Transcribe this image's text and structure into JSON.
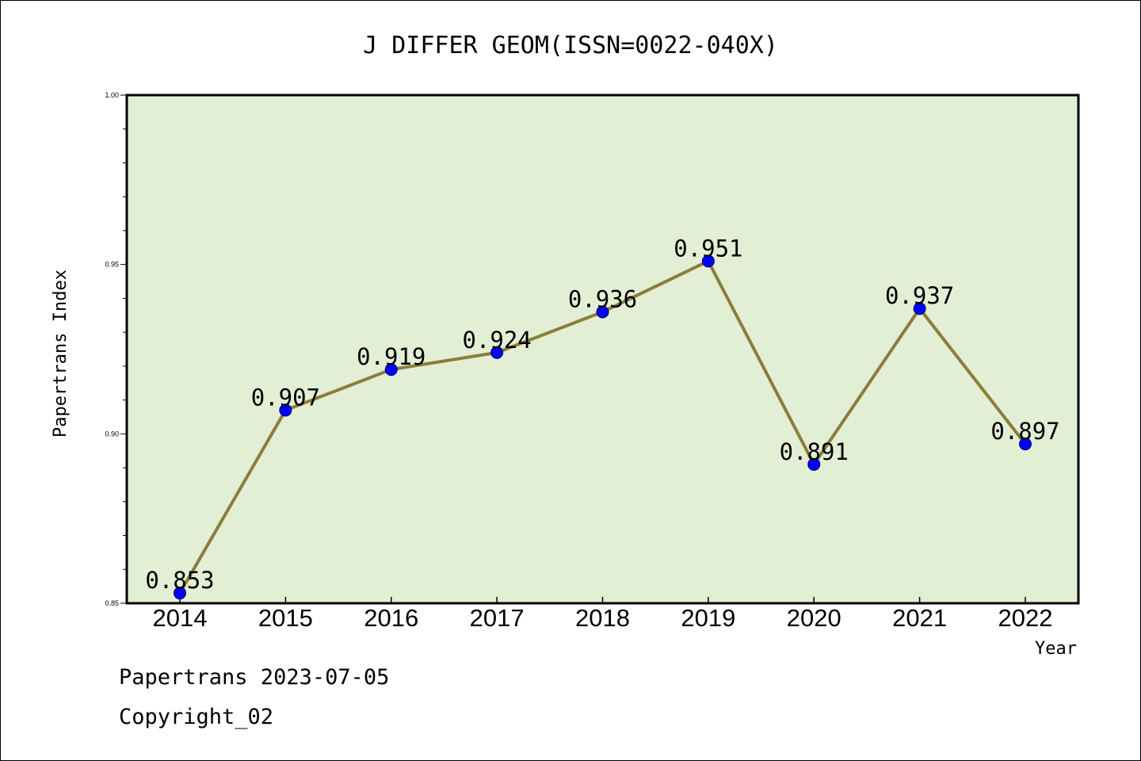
{
  "chart_data": {
    "type": "line",
    "title": "J DIFFER GEOM(ISSN=0022-040X)",
    "xlabel": "Year",
    "ylabel": "Papertrans Index",
    "categories": [
      "2014",
      "2015",
      "2016",
      "2017",
      "2018",
      "2019",
      "2020",
      "2021",
      "2022"
    ],
    "series": [
      {
        "values": [
          0.853,
          0.907,
          0.919,
          0.924,
          0.936,
          0.951,
          0.891,
          0.937,
          0.897
        ],
        "labels": [
          "0.853",
          "0.907",
          "0.919",
          "0.924",
          "0.936",
          "0.951",
          "0.891",
          "0.937",
          "0.897"
        ],
        "line_color": "#8b7d3a",
        "marker_color": "#0000ff"
      }
    ],
    "ylim": [
      0.85,
      1.0
    ],
    "yticks": [
      "0.85",
      "0.90",
      "0.95",
      "1.00"
    ],
    "plot_background": "#e2efd5",
    "grid": false
  },
  "footer": {
    "line1": "Papertrans 2023-07-05",
    "line2": "Copyright_02"
  }
}
